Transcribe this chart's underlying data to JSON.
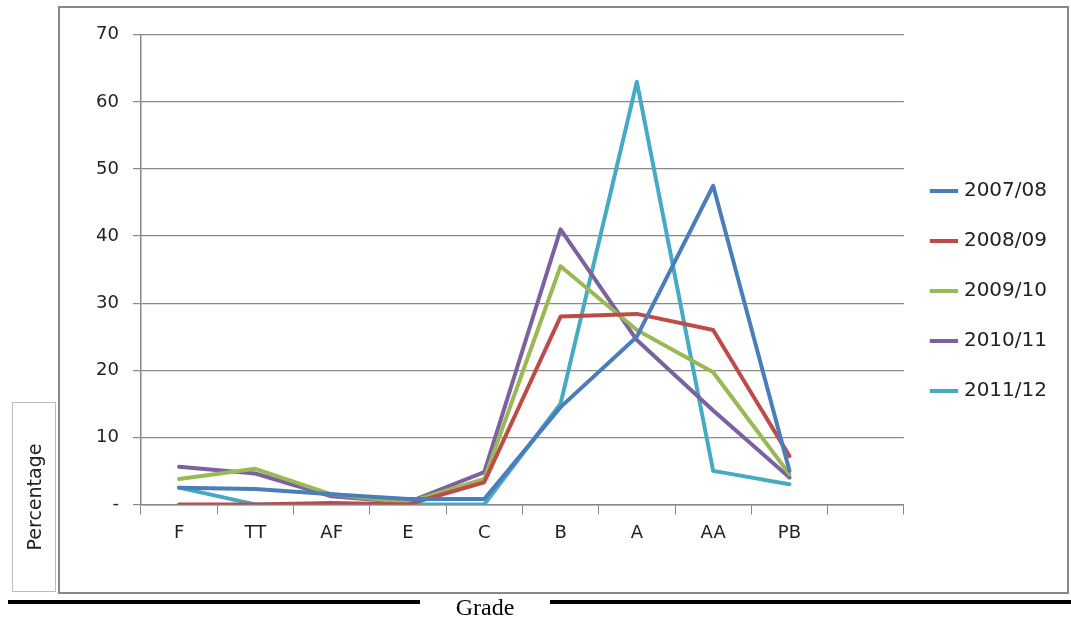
{
  "chart_data": {
    "type": "line",
    "xlabel": "Grade",
    "ylabel": "Percentage",
    "categories": [
      "F",
      "TT",
      "AF",
      "E",
      "C",
      "B",
      "A",
      "AA",
      "PB",
      null
    ],
    "ylim": [
      0,
      70
    ],
    "yticks": [
      {
        "value": 0,
        "label": "-"
      },
      10,
      20,
      30,
      40,
      50,
      60,
      70
    ],
    "grid": "y",
    "legend": "right",
    "marker": "none",
    "line_style": "solid",
    "series": [
      {
        "name": "2007/08",
        "color": "#4a7ebb",
        "values": [
          2.5,
          2.3,
          1.5,
          0.8,
          0.8,
          14.5,
          25,
          47.5,
          5,
          null
        ]
      },
      {
        "name": "2008/09",
        "color": "#be4b48",
        "values": [
          0,
          0,
          0.2,
          0,
          3.3,
          28,
          28.4,
          26,
          7.2,
          null
        ]
      },
      {
        "name": "2009/10",
        "color": "#98b954",
        "values": [
          3.8,
          5.3,
          1.5,
          0.3,
          3.8,
          35.5,
          26,
          19.7,
          4.5,
          null
        ]
      },
      {
        "name": "2010/11",
        "color": "#7d60a0",
        "values": [
          5.6,
          4.6,
          1.2,
          0.3,
          4.8,
          41,
          24.5,
          14,
          4,
          null
        ]
      },
      {
        "name": "2011/12",
        "color": "#46aac5",
        "values": [
          2.5,
          0,
          0,
          0,
          0,
          15,
          63,
          5,
          3,
          null
        ]
      }
    ]
  }
}
